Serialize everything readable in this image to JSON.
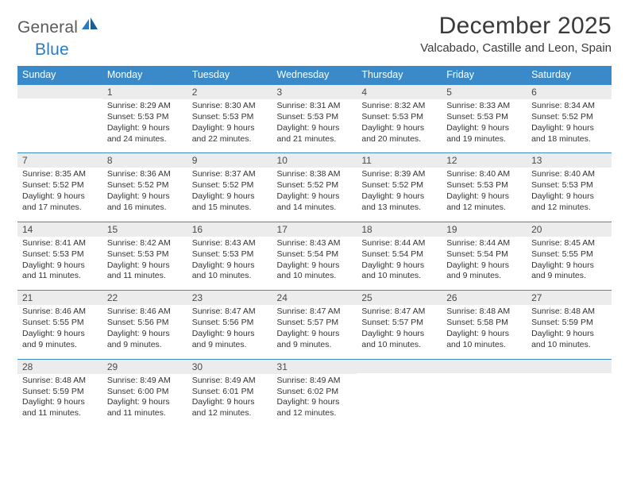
{
  "brand": {
    "part1": "General",
    "part2": "Blue"
  },
  "header": {
    "title": "December 2025",
    "location": "Valcabado, Castille and Leon, Spain"
  },
  "colors": {
    "header_bg": "#3a8ac9",
    "header_text": "#ffffff",
    "daynum_bg": "#ececec",
    "border": "#3a8ac9",
    "brand_blue": "#2b7bbf",
    "brand_gray": "#5a5a5a",
    "text": "#333333"
  },
  "weekdays": [
    "Sunday",
    "Monday",
    "Tuesday",
    "Wednesday",
    "Thursday",
    "Friday",
    "Saturday"
  ],
  "weeks": [
    [
      {
        "num": "",
        "lines": []
      },
      {
        "num": "1",
        "lines": [
          "Sunrise: 8:29 AM",
          "Sunset: 5:53 PM",
          "Daylight: 9 hours",
          "and 24 minutes."
        ]
      },
      {
        "num": "2",
        "lines": [
          "Sunrise: 8:30 AM",
          "Sunset: 5:53 PM",
          "Daylight: 9 hours",
          "and 22 minutes."
        ]
      },
      {
        "num": "3",
        "lines": [
          "Sunrise: 8:31 AM",
          "Sunset: 5:53 PM",
          "Daylight: 9 hours",
          "and 21 minutes."
        ]
      },
      {
        "num": "4",
        "lines": [
          "Sunrise: 8:32 AM",
          "Sunset: 5:53 PM",
          "Daylight: 9 hours",
          "and 20 minutes."
        ]
      },
      {
        "num": "5",
        "lines": [
          "Sunrise: 8:33 AM",
          "Sunset: 5:53 PM",
          "Daylight: 9 hours",
          "and 19 minutes."
        ]
      },
      {
        "num": "6",
        "lines": [
          "Sunrise: 8:34 AM",
          "Sunset: 5:52 PM",
          "Daylight: 9 hours",
          "and 18 minutes."
        ]
      }
    ],
    [
      {
        "num": "7",
        "lines": [
          "Sunrise: 8:35 AM",
          "Sunset: 5:52 PM",
          "Daylight: 9 hours",
          "and 17 minutes."
        ]
      },
      {
        "num": "8",
        "lines": [
          "Sunrise: 8:36 AM",
          "Sunset: 5:52 PM",
          "Daylight: 9 hours",
          "and 16 minutes."
        ]
      },
      {
        "num": "9",
        "lines": [
          "Sunrise: 8:37 AM",
          "Sunset: 5:52 PM",
          "Daylight: 9 hours",
          "and 15 minutes."
        ]
      },
      {
        "num": "10",
        "lines": [
          "Sunrise: 8:38 AM",
          "Sunset: 5:52 PM",
          "Daylight: 9 hours",
          "and 14 minutes."
        ]
      },
      {
        "num": "11",
        "lines": [
          "Sunrise: 8:39 AM",
          "Sunset: 5:52 PM",
          "Daylight: 9 hours",
          "and 13 minutes."
        ]
      },
      {
        "num": "12",
        "lines": [
          "Sunrise: 8:40 AM",
          "Sunset: 5:53 PM",
          "Daylight: 9 hours",
          "and 12 minutes."
        ]
      },
      {
        "num": "13",
        "lines": [
          "Sunrise: 8:40 AM",
          "Sunset: 5:53 PM",
          "Daylight: 9 hours",
          "and 12 minutes."
        ]
      }
    ],
    [
      {
        "num": "14",
        "lines": [
          "Sunrise: 8:41 AM",
          "Sunset: 5:53 PM",
          "Daylight: 9 hours",
          "and 11 minutes."
        ]
      },
      {
        "num": "15",
        "lines": [
          "Sunrise: 8:42 AM",
          "Sunset: 5:53 PM",
          "Daylight: 9 hours",
          "and 11 minutes."
        ]
      },
      {
        "num": "16",
        "lines": [
          "Sunrise: 8:43 AM",
          "Sunset: 5:53 PM",
          "Daylight: 9 hours",
          "and 10 minutes."
        ]
      },
      {
        "num": "17",
        "lines": [
          "Sunrise: 8:43 AM",
          "Sunset: 5:54 PM",
          "Daylight: 9 hours",
          "and 10 minutes."
        ]
      },
      {
        "num": "18",
        "lines": [
          "Sunrise: 8:44 AM",
          "Sunset: 5:54 PM",
          "Daylight: 9 hours",
          "and 10 minutes."
        ]
      },
      {
        "num": "19",
        "lines": [
          "Sunrise: 8:44 AM",
          "Sunset: 5:54 PM",
          "Daylight: 9 hours",
          "and 9 minutes."
        ]
      },
      {
        "num": "20",
        "lines": [
          "Sunrise: 8:45 AM",
          "Sunset: 5:55 PM",
          "Daylight: 9 hours",
          "and 9 minutes."
        ]
      }
    ],
    [
      {
        "num": "21",
        "lines": [
          "Sunrise: 8:46 AM",
          "Sunset: 5:55 PM",
          "Daylight: 9 hours",
          "and 9 minutes."
        ]
      },
      {
        "num": "22",
        "lines": [
          "Sunrise: 8:46 AM",
          "Sunset: 5:56 PM",
          "Daylight: 9 hours",
          "and 9 minutes."
        ]
      },
      {
        "num": "23",
        "lines": [
          "Sunrise: 8:47 AM",
          "Sunset: 5:56 PM",
          "Daylight: 9 hours",
          "and 9 minutes."
        ]
      },
      {
        "num": "24",
        "lines": [
          "Sunrise: 8:47 AM",
          "Sunset: 5:57 PM",
          "Daylight: 9 hours",
          "and 9 minutes."
        ]
      },
      {
        "num": "25",
        "lines": [
          "Sunrise: 8:47 AM",
          "Sunset: 5:57 PM",
          "Daylight: 9 hours",
          "and 10 minutes."
        ]
      },
      {
        "num": "26",
        "lines": [
          "Sunrise: 8:48 AM",
          "Sunset: 5:58 PM",
          "Daylight: 9 hours",
          "and 10 minutes."
        ]
      },
      {
        "num": "27",
        "lines": [
          "Sunrise: 8:48 AM",
          "Sunset: 5:59 PM",
          "Daylight: 9 hours",
          "and 10 minutes."
        ]
      }
    ],
    [
      {
        "num": "28",
        "lines": [
          "Sunrise: 8:48 AM",
          "Sunset: 5:59 PM",
          "Daylight: 9 hours",
          "and 11 minutes."
        ]
      },
      {
        "num": "29",
        "lines": [
          "Sunrise: 8:49 AM",
          "Sunset: 6:00 PM",
          "Daylight: 9 hours",
          "and 11 minutes."
        ]
      },
      {
        "num": "30",
        "lines": [
          "Sunrise: 8:49 AM",
          "Sunset: 6:01 PM",
          "Daylight: 9 hours",
          "and 12 minutes."
        ]
      },
      {
        "num": "31",
        "lines": [
          "Sunrise: 8:49 AM",
          "Sunset: 6:02 PM",
          "Daylight: 9 hours",
          "and 12 minutes."
        ]
      },
      {
        "num": "",
        "lines": []
      },
      {
        "num": "",
        "lines": []
      },
      {
        "num": "",
        "lines": []
      }
    ]
  ]
}
